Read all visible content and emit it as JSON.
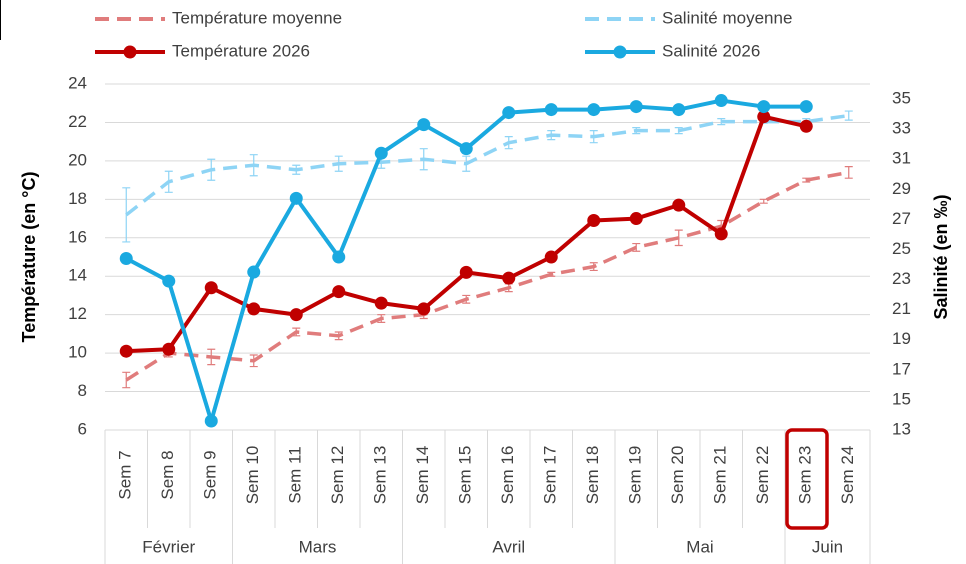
{
  "chart_data": {
    "type": "line",
    "categories": [
      "Sem 7",
      "Sem 8",
      "Sem 9",
      "Sem 10",
      "Sem 11",
      "Sem 12",
      "Sem 13",
      "Sem 14",
      "Sem 15",
      "Sem 16",
      "Sem 17",
      "Sem 18",
      "Sem 19",
      "Sem 20",
      "Sem 21",
      "Sem 22",
      "Sem 23",
      "Sem 24"
    ],
    "groups": [
      {
        "label": "Février",
        "span": 3
      },
      {
        "label": "Mars",
        "span": 4
      },
      {
        "label": "Avril",
        "span": 5
      },
      {
        "label": "Mai",
        "span": 4
      },
      {
        "label": "Juin",
        "span": 2
      }
    ],
    "ylabel": "Température  (en °C)",
    "y2label": "Salinité (en ‰)",
    "ylim": [
      6,
      24
    ],
    "yticks": [
      6,
      8,
      10,
      12,
      14,
      16,
      18,
      20,
      22,
      24
    ],
    "y2lim": [
      13,
      36
    ],
    "y2ticks": [
      13,
      15,
      17,
      19,
      21,
      23,
      25,
      27,
      29,
      31,
      33,
      35
    ],
    "grid": true,
    "series": [
      {
        "name": "Température moyenne",
        "color": "#e07c7c",
        "dashed": true,
        "axis": "y",
        "values": [
          8.6,
          10.0,
          9.8,
          9.6,
          11.1,
          10.9,
          11.8,
          12.0,
          12.8,
          13.4,
          14.1,
          14.5,
          15.5,
          16.0,
          16.6,
          17.9,
          19.0,
          19.4
        ],
        "errors": [
          0.4,
          0.2,
          0.4,
          0.3,
          0.2,
          0.2,
          0.2,
          0.2,
          0.2,
          0.2,
          0.1,
          0.2,
          0.2,
          0.4,
          0.3,
          0.1,
          0.1,
          0.3
        ]
      },
      {
        "name": "Salinité moyenne",
        "color": "#8ed4f5",
        "dashed": true,
        "axis": "y2",
        "values": [
          27.3,
          29.5,
          30.3,
          30.6,
          30.3,
          30.7,
          30.8,
          31.0,
          30.7,
          32.1,
          32.6,
          32.5,
          32.9,
          32.9,
          33.5,
          33.5,
          33.5,
          33.9
        ],
        "errors": [
          1.8,
          0.7,
          0.7,
          0.7,
          0.3,
          0.5,
          0.4,
          0.7,
          0.5,
          0.4,
          0.3,
          0.4,
          0.2,
          0.2,
          0.2,
          0.1,
          0.2,
          0.3
        ]
      },
      {
        "name": "Température 2026",
        "color": "#c00000",
        "dashed": false,
        "axis": "y",
        "values": [
          10.1,
          10.2,
          13.4,
          12.3,
          12.0,
          13.2,
          12.6,
          12.3,
          14.2,
          13.9,
          15.0,
          16.9,
          17.0,
          17.7,
          16.2,
          22.3,
          21.8,
          null
        ]
      },
      {
        "name": "Salinité 2026",
        "color": "#1aa9e0",
        "dashed": false,
        "axis": "y2",
        "values": [
          24.4,
          22.9,
          13.6,
          23.5,
          28.4,
          24.5,
          31.4,
          33.3,
          31.7,
          34.1,
          34.3,
          34.3,
          34.5,
          34.3,
          34.9,
          34.5,
          34.5,
          null
        ]
      }
    ]
  }
}
